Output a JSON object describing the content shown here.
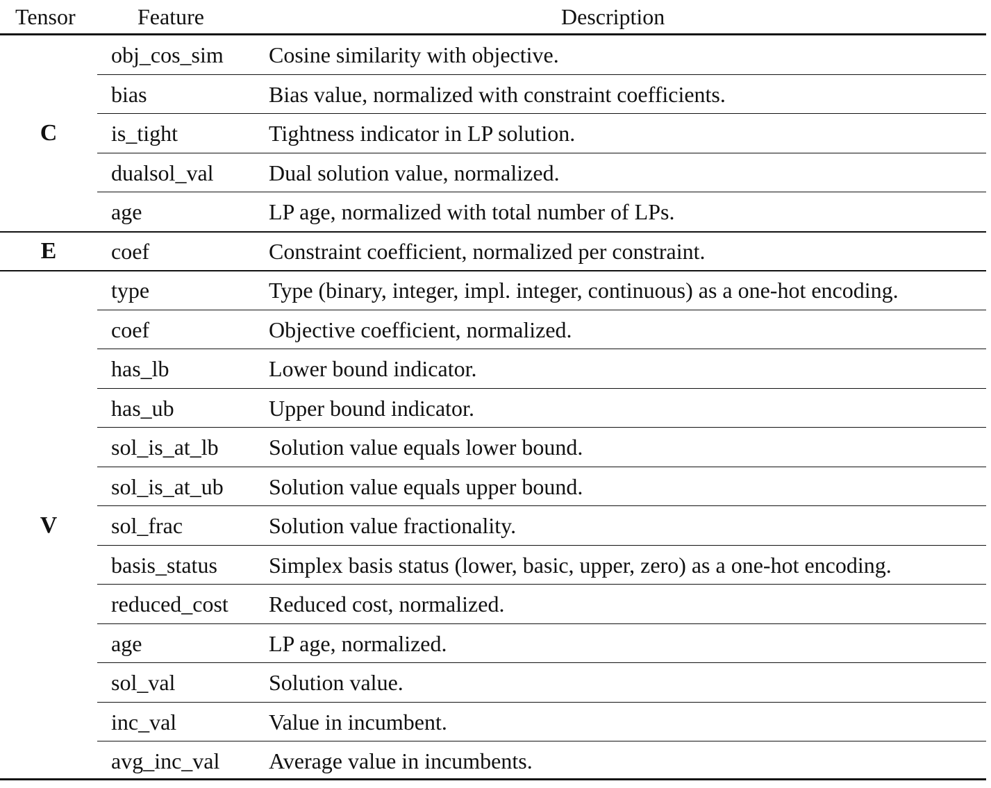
{
  "table": {
    "headers": {
      "tensor": "Tensor",
      "feature": "Feature",
      "description": "Description"
    },
    "groups": [
      {
        "tensor": "C",
        "rows": [
          {
            "feature": "obj_cos_sim",
            "description": "Cosine similarity with objective."
          },
          {
            "feature": "bias",
            "description": "Bias value, normalized with constraint coefficients."
          },
          {
            "feature": "is_tight",
            "description": "Tightness indicator in LP solution."
          },
          {
            "feature": "dualsol_val",
            "description": "Dual solution value, normalized."
          },
          {
            "feature": "age",
            "description": "LP age, normalized with total number of LPs."
          }
        ]
      },
      {
        "tensor": "E",
        "rows": [
          {
            "feature": "coef",
            "description": "Constraint coefficient, normalized per constraint."
          }
        ]
      },
      {
        "tensor": "V",
        "rows": [
          {
            "feature": "type",
            "description": "Type (binary, integer, impl. integer, continuous) as a one-hot encoding."
          },
          {
            "feature": "coef",
            "description": "Objective coefficient, normalized."
          },
          {
            "feature": "has_lb",
            "description": "Lower bound indicator."
          },
          {
            "feature": "has_ub",
            "description": "Upper bound indicator."
          },
          {
            "feature": "sol_is_at_lb",
            "description": "Solution value equals lower bound."
          },
          {
            "feature": "sol_is_at_ub",
            "description": "Solution value equals upper bound."
          },
          {
            "feature": "sol_frac",
            "description": "Solution value fractionality."
          },
          {
            "feature": "basis_status",
            "description": "Simplex basis status (lower, basic, upper, zero) as a one-hot encoding."
          },
          {
            "feature": "reduced_cost",
            "description": "Reduced cost, normalized."
          },
          {
            "feature": "age",
            "description": "LP age, normalized."
          },
          {
            "feature": "sol_val",
            "description": "Solution value."
          },
          {
            "feature": "inc_val",
            "description": "Value in incumbent."
          },
          {
            "feature": "avg_inc_val",
            "description": "Average value in incumbents."
          }
        ]
      }
    ]
  }
}
